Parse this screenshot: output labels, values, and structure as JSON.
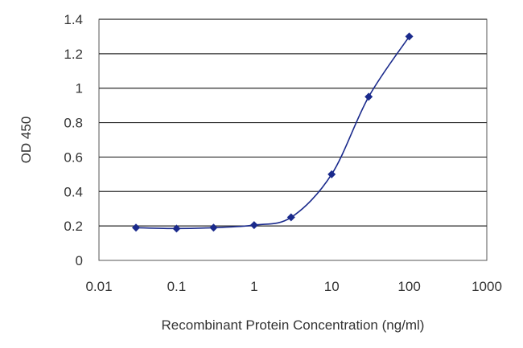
{
  "chart_data": {
    "type": "line",
    "xlabel": "Recombinant Protein Concentration (ng/ml)",
    "ylabel": "OD 450",
    "x_scale": "log",
    "xlim": [
      0.01,
      1000
    ],
    "ylim": [
      0,
      1.4
    ],
    "x_ticks": [
      "0.01",
      "0.1",
      "1",
      "10",
      "100",
      "1000"
    ],
    "y_ticks": [
      "0",
      "0.2",
      "0.4",
      "0.6",
      "0.8",
      "1",
      "1.2",
      "1.4"
    ],
    "grid": "horizontal",
    "series": [
      {
        "color": "#1a2a8c",
        "marker": "diamond",
        "points": [
          {
            "x": 0.03,
            "y": 0.19
          },
          {
            "x": 0.1,
            "y": 0.185
          },
          {
            "x": 0.3,
            "y": 0.19
          },
          {
            "x": 1,
            "y": 0.205
          },
          {
            "x": 3,
            "y": 0.25
          },
          {
            "x": 10,
            "y": 0.5
          },
          {
            "x": 30,
            "y": 0.95
          },
          {
            "x": 100,
            "y": 1.3
          }
        ]
      }
    ]
  }
}
